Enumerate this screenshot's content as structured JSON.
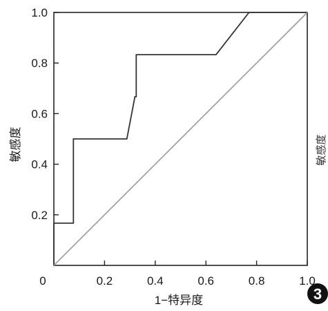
{
  "chart_data": {
    "type": "line",
    "xlabel": "1−特异度",
    "ylabel": "敏感度",
    "xlim": [
      0,
      1
    ],
    "ylim": [
      0,
      1
    ],
    "x_ticks": [
      {
        "value": 0,
        "label": "0"
      },
      {
        "value": 0.2,
        "label": "0.2"
      },
      {
        "value": 0.4,
        "label": "0.4"
      },
      {
        "value": 0.6,
        "label": "0.6"
      },
      {
        "value": 0.8,
        "label": "0.8"
      },
      {
        "value": 1.0,
        "label": "1.0"
      }
    ],
    "y_ticks": [
      {
        "value": 0.2,
        "label": "0.2"
      },
      {
        "value": 0.4,
        "label": "0.4"
      },
      {
        "value": 0.6,
        "label": "0.6"
      },
      {
        "value": 0.8,
        "label": "0.8"
      },
      {
        "value": 1.0,
        "label": "1.0"
      }
    ],
    "series": [
      {
        "kind": "roc-curve",
        "color": "#333333",
        "x": [
          0,
          0,
          0.077,
          0.077,
          0.288,
          0.32,
          0.325,
          0.325,
          0.64,
          0.77,
          1.0
        ],
        "y": [
          0,
          0.167,
          0.167,
          0.5,
          0.5,
          0.667,
          0.667,
          0.833,
          0.833,
          1.0,
          1.0
        ]
      },
      {
        "kind": "reference-line",
        "color": "#999999",
        "x": [
          0,
          1
        ],
        "y": [
          0,
          1
        ]
      }
    ],
    "grid": false,
    "legend": "none",
    "panel_badge": "3",
    "clipped_side_label": "敏感度"
  }
}
